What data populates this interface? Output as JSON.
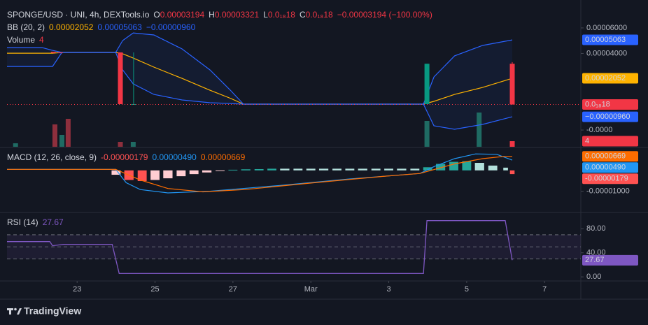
{
  "header": {
    "symbol": "SPONGE/USD · UNI, 4h, DEXTools.io",
    "ohlc_labels": [
      "O",
      "H",
      "L",
      "C"
    ],
    "ohlc_values": [
      "0.00003194",
      "0.00003321",
      "0.0₁₈18",
      "0.0₁₈18"
    ],
    "change": "−0.00003194 (−100.00%)"
  },
  "brand": "TradingView",
  "chart_data": [
    {
      "type": "candlestick",
      "xlim": [
        21.2,
        35.93
      ],
      "ylim": [
        -3.31e-05,
        7.53e-05
      ],
      "yticks": [
        {
          "value": 6e-05,
          "label": "0.00006000"
        },
        {
          "value": 4e-05,
          "label": "0.00004000"
        },
        {
          "value": -2e-05,
          "label": "-0.0000"
        }
      ],
      "up_color": "#089981",
      "down_color": "#f23645",
      "candles": {
        "x": [
          22.39,
          22.57,
          24.11,
          24.45,
          31.98,
          34.17
        ],
        "open": [
          4.13e-05,
          4.08e-05,
          4.08e-05,
          3e-07,
          3e-07,
          3.194e-05
        ],
        "high": [
          4.13e-05,
          4.08e-05,
          4.08e-05,
          4.08e-05,
          3.194e-05,
          3.321e-05
        ],
        "low": [
          4.02e-05,
          4.02e-05,
          3e-07,
          3e-07,
          3e-07,
          1.8e-19
        ],
        "close": [
          4.04e-05,
          4.02e-05,
          3e-07,
          3e-07,
          3.194e-05,
          1.8e-19
        ]
      },
      "bollinger": {
        "title": "BB (20, 2)",
        "fill": "rgba(41,98,255,0.07)",
        "x": [
          21.2,
          22.1,
          22.37,
          22.61,
          23.99,
          24.17,
          24.44,
          24.97,
          25.69,
          26.41,
          26.95,
          27.27,
          31.89,
          32.16,
          32.69,
          33.41,
          34.17
        ],
        "series": [
          {
            "color": "#ffb300",
            "last_label": "0.00002052",
            "values": [
              4.02e-05,
              4.02e-05,
              4.02e-05,
              4.08e-05,
              4.08e-05,
              3.97e-05,
              3.64e-05,
              2.93e-05,
              2.05e-05,
              1.12e-05,
              4.7e-06,
              3e-07,
              3e-07,
              2.5e-06,
              7.9e-06,
              1.34e-05,
              2.052e-05
            ]
          },
          {
            "color": "#2962ff",
            "last_label": "0.00005063",
            "values": [
              4.46e-05,
              4.46e-05,
              4.24e-05,
              4.08e-05,
              4.08e-05,
              5.01e-05,
              5.61e-05,
              5.45e-05,
              4.36e-05,
              2.71e-05,
              1.07e-05,
              3e-07,
              3e-07,
              2.16e-05,
              3.81e-05,
              4.63e-05,
              5.063e-05
            ]
          },
          {
            "color": "#2962ff",
            "last_label": "−0.00000960",
            "values": [
              2.98e-05,
              2.98e-05,
              2.98e-05,
              4.08e-05,
              4.08e-05,
              2.71e-05,
              1.62e-05,
              7.9e-06,
              3.6e-06,
              1.4e-06,
              8e-07,
              3e-07,
              3e-07,
              -1.67e-05,
              -1.94e-05,
              -1.56e-05,
              -9.6e-06
            ]
          }
        ]
      },
      "volume": {
        "title": "Volume",
        "ylim": [
          0,
          99
        ],
        "x": [
          21.42,
          22.43,
          22.61,
          22.77,
          24.11,
          24.44,
          31.98,
          33.32,
          34.17
        ],
        "values": [
          2.5,
          16,
          8.5,
          20,
          3.5,
          3.5,
          18.5,
          24.5,
          4
        ],
        "colors": [
          "#1f6b63",
          "#8e2f3d",
          "#1f6b63",
          "#8e2f3d",
          "#8e2f3d",
          "#1f6b63",
          "#1f6b63",
          "#1f6b63",
          "#f23645"
        ]
      }
    },
    {
      "type": "macd",
      "title": "MACD (12, 26, close, 9)",
      "xlim": [
        21.2,
        35.93
      ],
      "ylim": [
        -1.95e-05,
        1.03e-05
      ],
      "yticks": [
        {
          "value": -1e-05,
          "label": "-0.00001000"
        }
      ],
      "histogram": {
        "last_label": "-0.00000179",
        "colors": {
          "grow_above": "#26a69a",
          "fall_above": "#b2dfdb",
          "grow_below": "#ffcdd2",
          "fall_below": "#ff5252"
        },
        "x": [
          24,
          24.33,
          24.67,
          25,
          25.33,
          25.67,
          26,
          26.33,
          26.67,
          27,
          27.33,
          27.67,
          28,
          28.33,
          28.67,
          29,
          29.33,
          29.67,
          30,
          30.33,
          30.67,
          31,
          31.33,
          31.67,
          32,
          32.33,
          32.67,
          33,
          33.33,
          33.67,
          34,
          34.17
        ],
        "values": [
          -2.1e-06,
          -4.6e-06,
          -5.1e-06,
          -4.6e-06,
          -3.8e-06,
          -2.8e-06,
          -1.8e-06,
          -1e-06,
          -3e-07,
          3e-07,
          5e-07,
          6e-07,
          8e-07,
          8e-07,
          8e-07,
          8e-07,
          8e-07,
          8e-07,
          8e-07,
          8e-07,
          8e-07,
          8e-07,
          8e-07,
          8e-07,
          1.5e-06,
          3.1e-06,
          4.1e-06,
          4.4e-06,
          3.6e-06,
          2.3e-06,
          1.3e-06,
          -1.79e-06
        ]
      },
      "series": [
        {
          "color": "#2196f3",
          "last_label": "0.00000490",
          "x": [
            21.2,
            23.99,
            24.26,
            24.62,
            25.33,
            26.41,
            28.21,
            30.0,
            31.8,
            32.16,
            32.69,
            33.23,
            33.77,
            34.17
          ],
          "values": [
            5e-07,
            5e-07,
            -5.9e-06,
            -9.2e-06,
            -1.08e-05,
            -1e-05,
            -7.2e-06,
            -4.1e-06,
            -1.5e-06,
            1.8e-06,
            5.6e-06,
            7.9e-06,
            7.7e-06,
            4.9e-06
          ]
        },
        {
          "color": "#ff6d00",
          "last_label": "0.00000669",
          "x": [
            21.2,
            23.99,
            24.62,
            25.33,
            26.23,
            27.31,
            29.1,
            30.9,
            31.8,
            32.69,
            33.41,
            33.95,
            34.17
          ],
          "values": [
            5e-07,
            5e-07,
            -4.6e-06,
            -8.7e-06,
            -1.03e-05,
            -9.2e-06,
            -5.9e-06,
            -2.8e-06,
            -1.5e-06,
            3.1e-06,
            5.6e-06,
            6.7e-06,
            6.69e-06
          ]
        }
      ]
    },
    {
      "type": "line",
      "title": "RSI (14)",
      "xlim": [
        21.2,
        35.93
      ],
      "ylim": [
        -4.5,
        104.8
      ],
      "yticks": [
        {
          "value": 80,
          "label": "80.00"
        },
        {
          "value": 40,
          "label": "40.00"
        },
        {
          "value": 0,
          "label": "0.00"
        }
      ],
      "bands": [
        70,
        50,
        30
      ],
      "band_color": "rgba(126,87,194,0.1)",
      "color": "#7e57c2",
      "x": [
        21.2,
        21.92,
        22.3,
        22.37,
        22.64,
        23.9,
        24.08,
        31.89,
        31.98,
        33.99,
        34.17
      ],
      "values": [
        58.6,
        58.6,
        58.6,
        51.8,
        54.1,
        54.1,
        5.6,
        5.6,
        93.5,
        93.5,
        27.67
      ],
      "xticks": [
        23,
        25,
        27,
        {
          "value": 29,
          "label": "Mar"
        },
        {
          "value": 31,
          "label": "3"
        },
        {
          "value": 33,
          "label": "5"
        },
        {
          "value": 35,
          "label": "7"
        }
      ]
    }
  ]
}
